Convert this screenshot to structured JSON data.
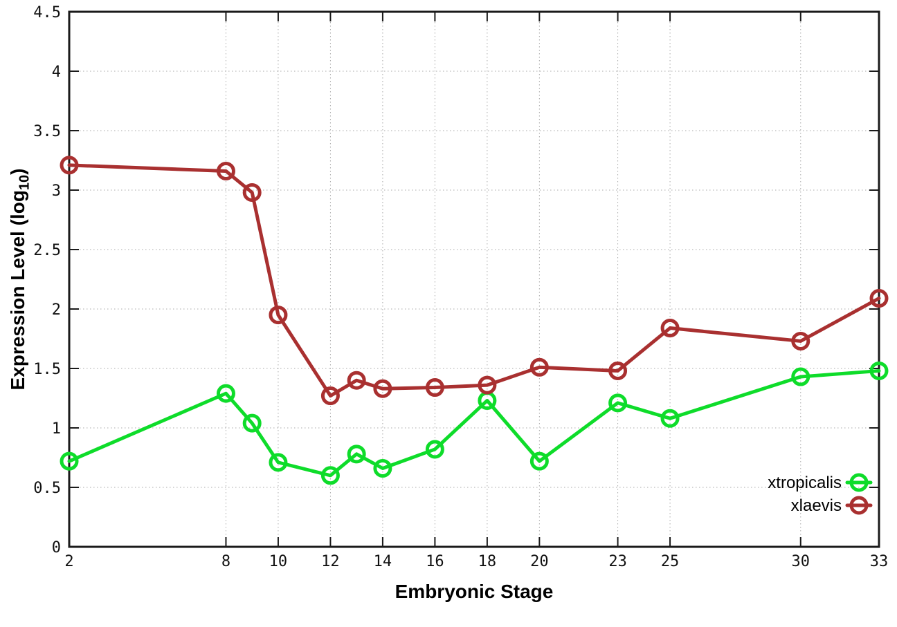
{
  "chart_data": {
    "type": "line",
    "x": [
      2,
      8,
      9,
      10,
      12,
      13,
      14,
      16,
      18,
      20,
      23,
      25,
      30,
      33
    ],
    "series": [
      {
        "name": "xtropicalis",
        "color": "#0edc2a",
        "marker": "open-circle",
        "values": [
          0.72,
          1.29,
          1.04,
          0.71,
          0.6,
          0.78,
          0.66,
          0.82,
          1.23,
          0.72,
          1.21,
          1.08,
          1.43,
          1.48
        ]
      },
      {
        "name": "xlaevis",
        "color": "#a93030",
        "marker": "open-circle",
        "values": [
          3.21,
          3.16,
          2.98,
          1.95,
          1.27,
          1.4,
          1.33,
          1.34,
          1.36,
          1.51,
          1.48,
          1.84,
          1.73,
          2.09
        ]
      }
    ],
    "title": "",
    "xlabel": "Embryonic Stage",
    "ylabel": "Expression Level (log10)",
    "ylabel_base": "Expression Level (log",
    "ylabel_sub": "10",
    "ylabel_close": ")",
    "xlim": [
      2,
      33
    ],
    "ylim": [
      0,
      4.5
    ],
    "x_ticks": [
      2,
      8,
      10,
      12,
      14,
      16,
      18,
      20,
      23,
      25,
      30,
      33
    ],
    "y_ticks": [
      0,
      0.5,
      1,
      1.5,
      2,
      2.5,
      3,
      3.5,
      4,
      4.5
    ],
    "grid": true,
    "grid_color": "#a8a8a8",
    "border_color": "#1a1a1a",
    "legend_position": "inside-bottom-right",
    "legend": [
      "xtropicalis",
      "xlaevis"
    ]
  }
}
